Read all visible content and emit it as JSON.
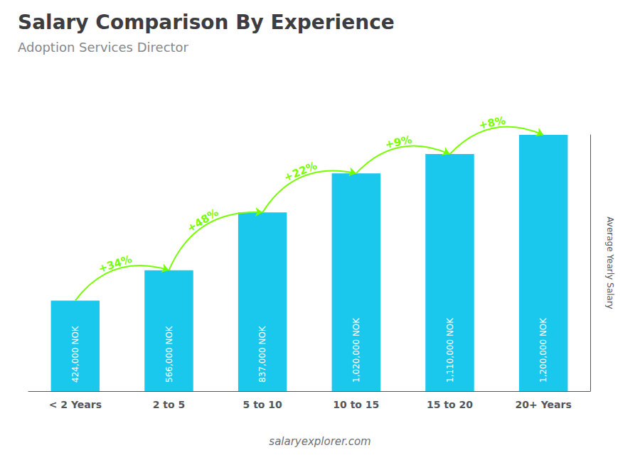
{
  "chart_data": {
    "type": "bar",
    "title": "Salary Comparison By Experience",
    "subtitle": "Adoption Services Director",
    "categories": [
      "< 2 Years",
      "2 to 5",
      "5 to 10",
      "10 to 15",
      "15 to 20",
      "20+ Years"
    ],
    "values": [
      424000,
      566000,
      837000,
      1020000,
      1110000,
      1200000
    ],
    "value_labels": [
      "424,000 NOK",
      "566,000 NOK",
      "837,000 NOK",
      "1,020,000 NOK",
      "1,110,000 NOK",
      "1,200,000 NOK"
    ],
    "data_labels": true,
    "color": "#1ac8ed",
    "ylabel": "Average Yearly Salary",
    "ylim": [
      0,
      1200000
    ],
    "grid": false,
    "tick_labels": "x",
    "annotations": [
      {
        "text": "+34%",
        "from": "< 2 Years",
        "to": "2 to 5",
        "color": "#77ff00"
      },
      {
        "text": "+48%",
        "from": "2 to 5",
        "to": "5 to 10",
        "color": "#77ff00"
      },
      {
        "text": "+22%",
        "from": "5 to 10",
        "to": "10 to 15",
        "color": "#77ff00"
      },
      {
        "text": "+9%",
        "from": "10 to 15",
        "to": "15 to 20",
        "color": "#77ff00"
      },
      {
        "text": "+8%",
        "from": "15 to 20",
        "to": "20+ Years",
        "color": "#77ff00"
      }
    ],
    "footer": "salaryexplorer.com"
  }
}
